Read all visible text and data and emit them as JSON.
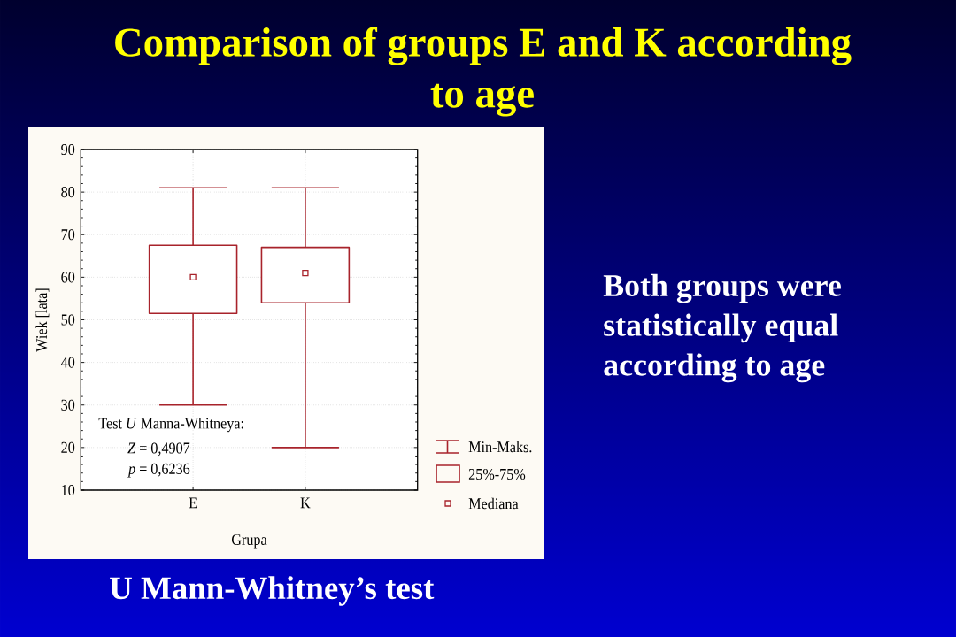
{
  "chart_data": {
    "type": "box",
    "title": "Comparison of groups E and K according to age",
    "xlabel": "Grupa",
    "ylabel": "Wiek [lata]",
    "categories": [
      "E",
      "K"
    ],
    "boxes": [
      {
        "low": 30,
        "q1": 51.5,
        "median": 60,
        "q3": 67.5,
        "high": 81
      },
      {
        "low": 20,
        "q1": 54,
        "median": 61,
        "q3": 67,
        "high": 81
      }
    ],
    "color": "#a8232b",
    "ylim": [
      10,
      90
    ],
    "yticks": [
      10,
      20,
      30,
      40,
      50,
      60,
      70,
      80,
      90
    ],
    "grid": true,
    "marker": "square",
    "annotations": [
      "Test *U* Manna-Whitneya:",
      "*Z* = 0,4907",
      "*p* = 0,6236",
      "Min-Maks.",
      "25%-75%",
      "Mediana",
      "Both groups were statistically equal according to age",
      "U Mann-Whitney’s test"
    ]
  }
}
